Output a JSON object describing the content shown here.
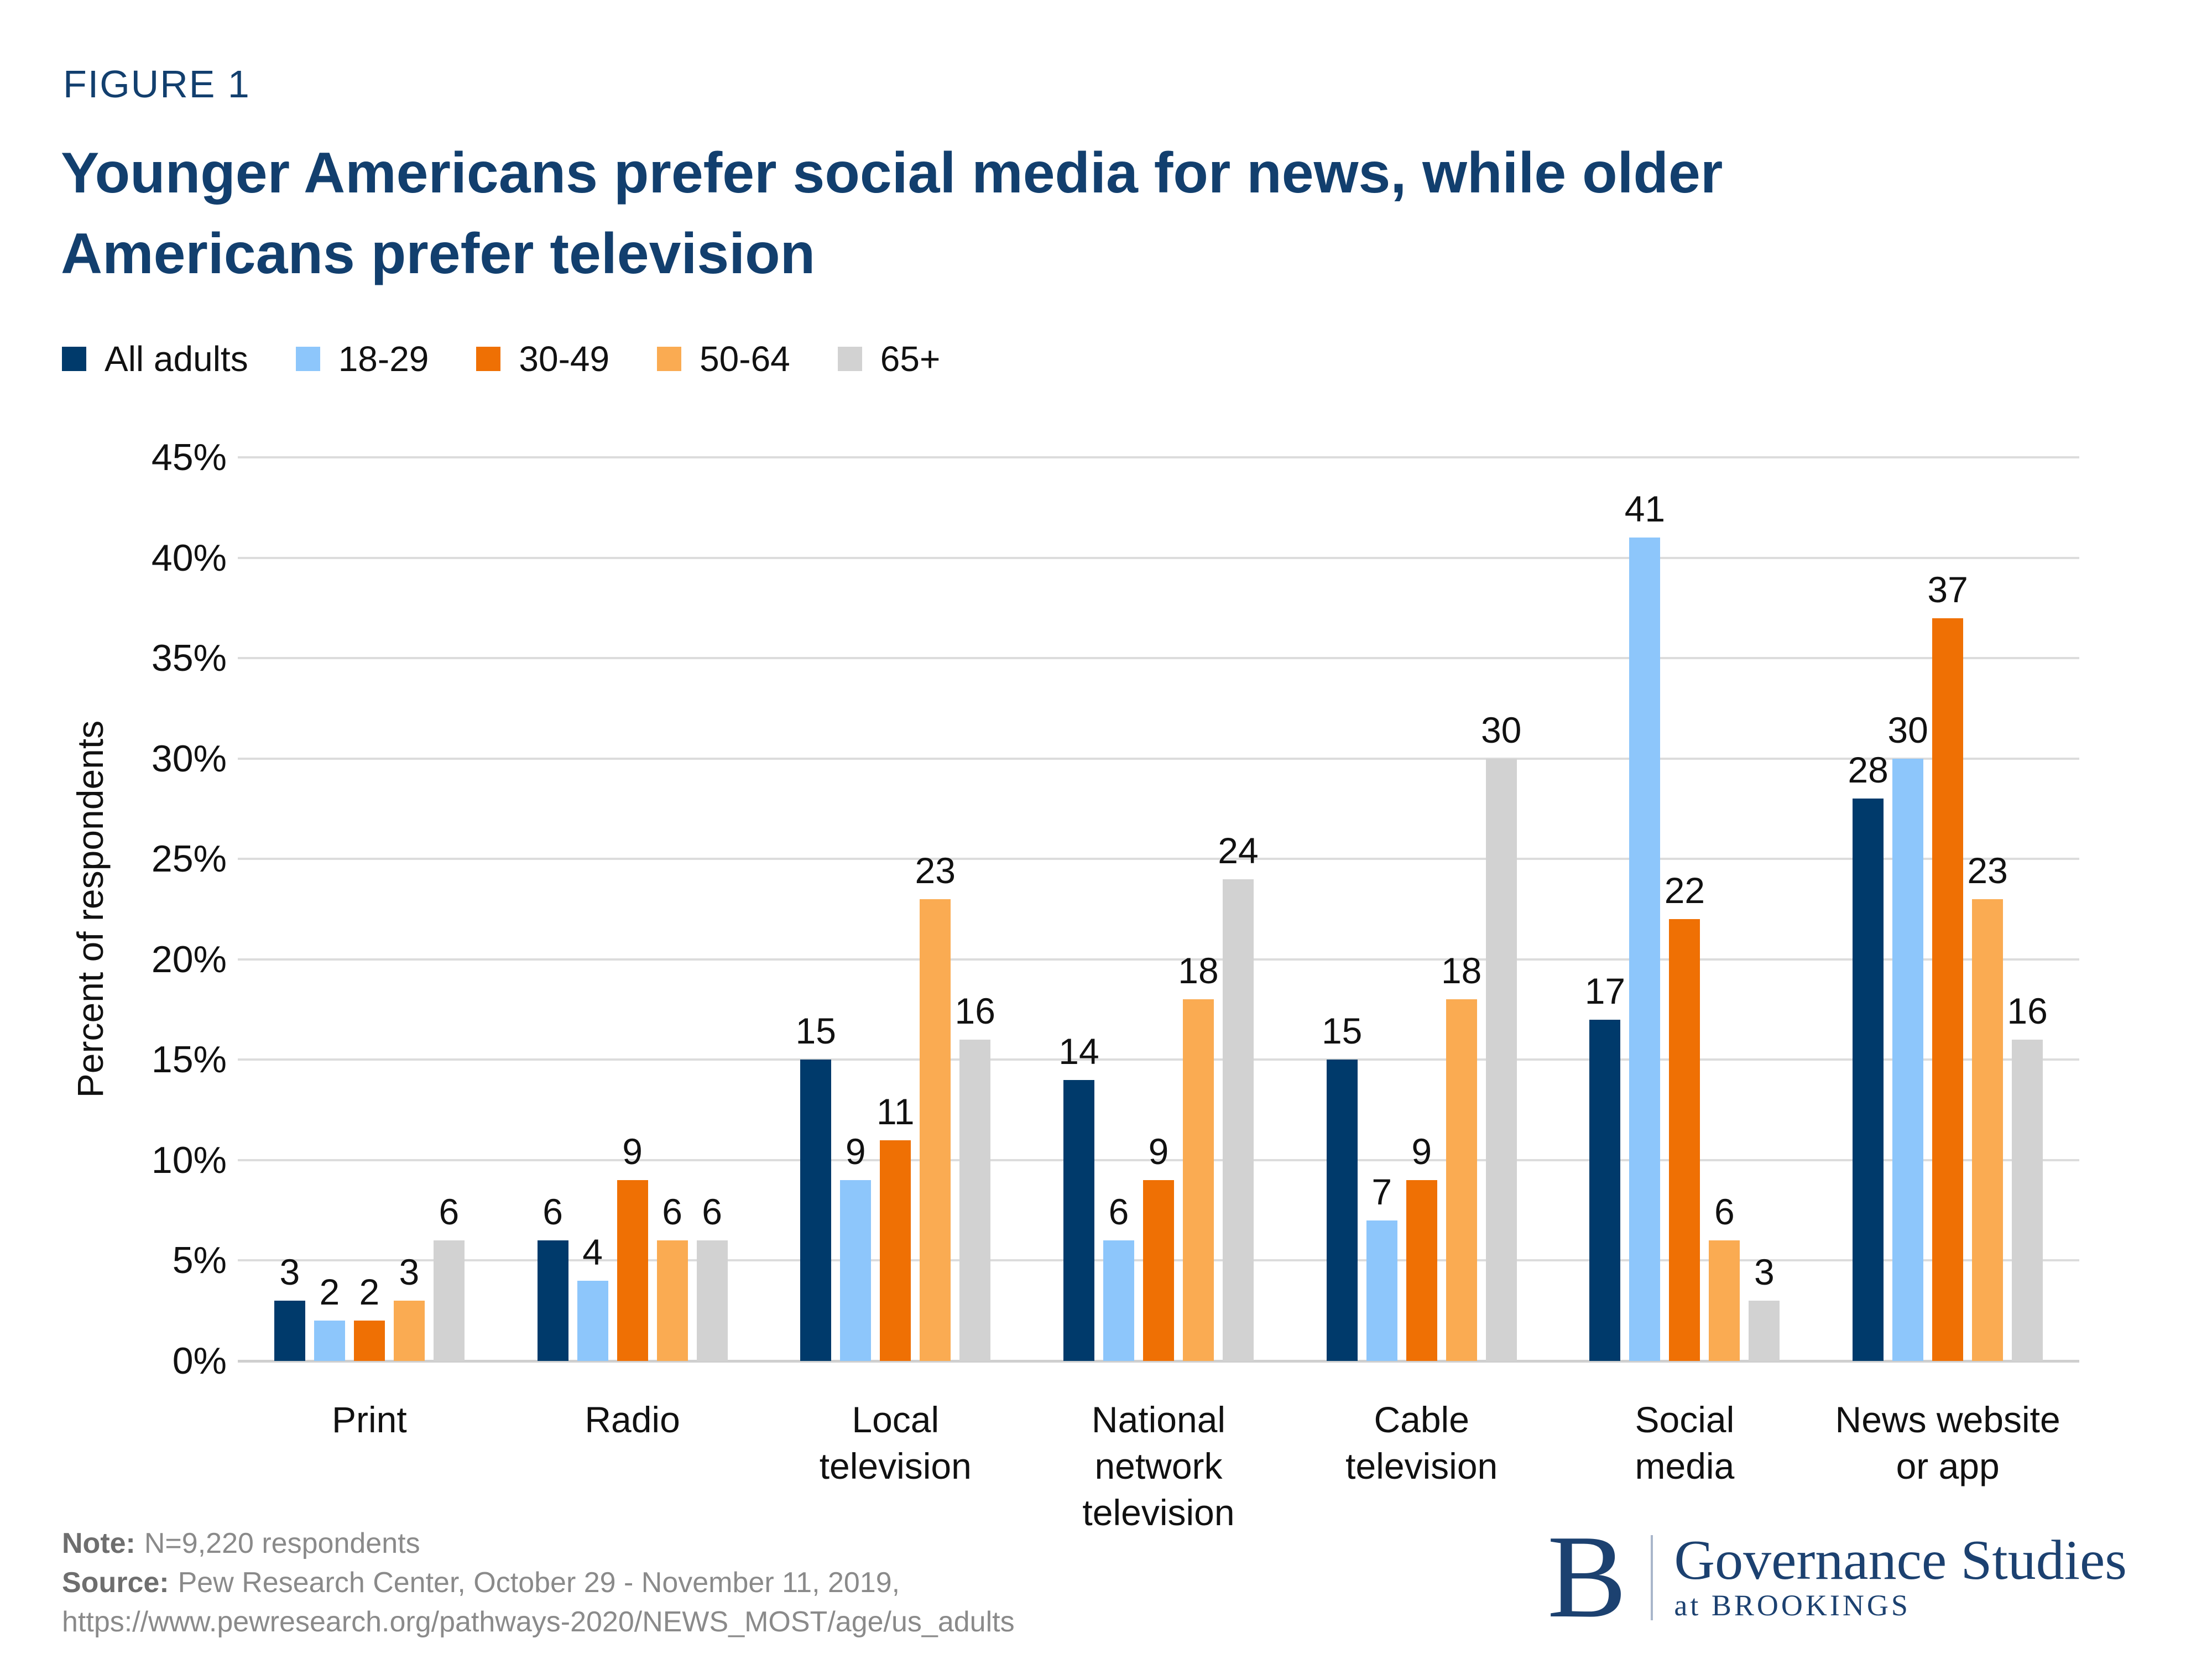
{
  "figure_label": "FIGURE 1",
  "title_lines": [
    "Younger Americans prefer social media for news, while older",
    "Americans prefer television"
  ],
  "chart_data": {
    "type": "bar",
    "title": "Younger Americans prefer social media for news, while older Americans prefer television",
    "xlabel": "",
    "ylabel": "Percent of respondents",
    "ylim": [
      0,
      45
    ],
    "ytick_step": 5,
    "ytick_suffix": "%",
    "grid": true,
    "legend_position": "top",
    "categories": [
      "Print",
      "Radio",
      "Local television",
      "National network television",
      "Cable television",
      "Social media",
      "News website or app"
    ],
    "category_lines": [
      [
        "Print"
      ],
      [
        "Radio"
      ],
      [
        "Local",
        "television"
      ],
      [
        "National",
        "network",
        "television"
      ],
      [
        "Cable",
        "television"
      ],
      [
        "Social",
        "media"
      ],
      [
        "News website",
        "or app"
      ]
    ],
    "series": [
      {
        "name": "All adults",
        "color": "#003A6B",
        "values": [
          3,
          6,
          15,
          14,
          15,
          17,
          28
        ]
      },
      {
        "name": "18-29",
        "color": "#8DC6FB",
        "values": [
          2,
          4,
          9,
          6,
          7,
          41,
          30
        ]
      },
      {
        "name": "30-49",
        "color": "#EF7004",
        "values": [
          2,
          9,
          11,
          9,
          9,
          22,
          37
        ]
      },
      {
        "name": "50-64",
        "color": "#FAAB52",
        "values": [
          3,
          6,
          23,
          18,
          18,
          6,
          23
        ]
      },
      {
        "name": "65+",
        "color": "#D2D2D2",
        "values": [
          6,
          6,
          16,
          24,
          30,
          3,
          16
        ]
      }
    ]
  },
  "footer": {
    "note_label": "Note:",
    "note_text": "N=9,220 respondents",
    "source_label": "Source:",
    "source_text": "Pew Research Center, October 29 - November 11, 2019,",
    "source_url": "https://www.pewresearch.org/pathways-2020/NEWS_MOST/age/us_adults"
  },
  "logo": {
    "initial": "B",
    "name": "Governance Studies",
    "sub": "at BROOKINGS"
  },
  "colors": {
    "heading": "#123F6E",
    "text": "#111111",
    "grid": "#DCDCDC",
    "baseline": "#CFCFCF",
    "footer_text": "#8A8A8A",
    "footer_label": "#6E6E6E",
    "logo": "#1C4170",
    "logo_divider": "#A9B6CB"
  }
}
